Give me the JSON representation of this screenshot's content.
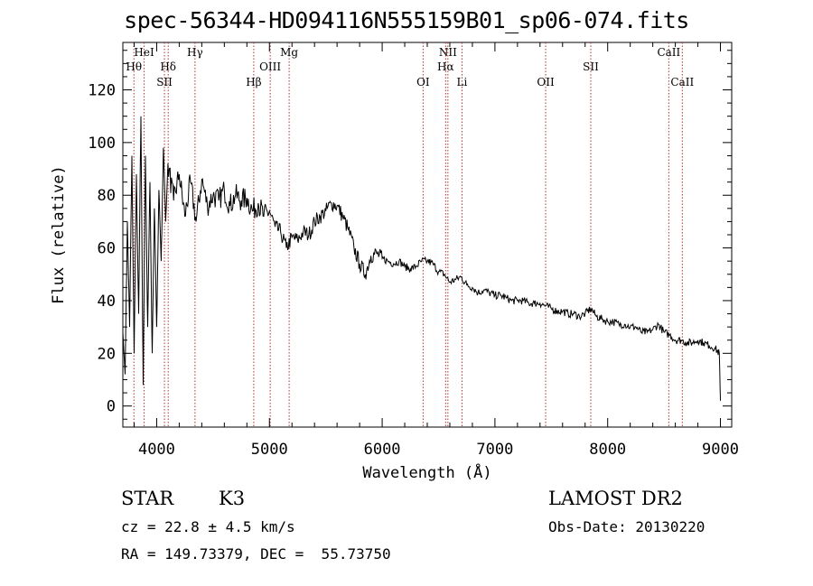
{
  "chart_data": {
    "type": "line",
    "title": "spec-56344-HD094116N555159B01_sp06-074.fits",
    "xlabel": "Wavelength (Å)",
    "ylabel": "Flux (relative)",
    "xlim": [
      3700,
      9100
    ],
    "ylim": [
      -8,
      138
    ],
    "x_ticks": [
      4000,
      5000,
      6000,
      7000,
      8000,
      9000
    ],
    "y_ticks": [
      0,
      20,
      40,
      60,
      80,
      100,
      120
    ],
    "grid": false,
    "series": [
      {
        "points": [
          [
            3700,
            28
          ],
          [
            3720,
            12
          ],
          [
            3740,
            70
          ],
          [
            3760,
            30
          ],
          [
            3780,
            95
          ],
          [
            3800,
            20
          ],
          [
            3820,
            88
          ],
          [
            3840,
            35
          ],
          [
            3860,
            110
          ],
          [
            3880,
            8
          ],
          [
            3900,
            95
          ],
          [
            3920,
            30
          ],
          [
            3940,
            85
          ],
          [
            3960,
            20
          ],
          [
            3980,
            75
          ],
          [
            4000,
            30
          ],
          [
            4020,
            82
          ],
          [
            4040,
            55
          ],
          [
            4060,
            98
          ],
          [
            4080,
            70
          ],
          [
            4100,
            92
          ],
          [
            4150,
            78
          ],
          [
            4200,
            88
          ],
          [
            4250,
            72
          ],
          [
            4300,
            85
          ],
          [
            4350,
            70
          ],
          [
            4400,
            86
          ],
          [
            4450,
            76
          ],
          [
            4500,
            80
          ],
          [
            4550,
            78
          ],
          [
            4600,
            82
          ],
          [
            4650,
            76
          ],
          [
            4700,
            80
          ],
          [
            4750,
            78
          ],
          [
            4800,
            79
          ],
          [
            4850,
            74
          ],
          [
            4900,
            77
          ],
          [
            4950,
            72
          ],
          [
            5000,
            74
          ],
          [
            5050,
            68
          ],
          [
            5100,
            66
          ],
          [
            5150,
            60
          ],
          [
            5200,
            64
          ],
          [
            5250,
            63
          ],
          [
            5300,
            66
          ],
          [
            5350,
            65
          ],
          [
            5400,
            70
          ],
          [
            5450,
            72
          ],
          [
            5500,
            74
          ],
          [
            5550,
            77
          ],
          [
            5600,
            76
          ],
          [
            5650,
            72
          ],
          [
            5700,
            67
          ],
          [
            5750,
            60
          ],
          [
            5800,
            54
          ],
          [
            5850,
            50
          ],
          [
            5900,
            57
          ],
          [
            5950,
            58
          ],
          [
            6000,
            56
          ],
          [
            6050,
            55
          ],
          [
            6100,
            54
          ],
          [
            6150,
            55
          ],
          [
            6200,
            53
          ],
          [
            6250,
            52
          ],
          [
            6300,
            53
          ],
          [
            6350,
            55
          ],
          [
            6400,
            55
          ],
          [
            6450,
            54
          ],
          [
            6500,
            51
          ],
          [
            6550,
            50
          ],
          [
            6600,
            47
          ],
          [
            6650,
            48
          ],
          [
            6700,
            49
          ],
          [
            6750,
            46
          ],
          [
            6800,
            45
          ],
          [
            6850,
            43
          ],
          [
            6900,
            44
          ],
          [
            6950,
            43
          ],
          [
            7000,
            42
          ],
          [
            7050,
            42
          ],
          [
            7100,
            41
          ],
          [
            7150,
            40
          ],
          [
            7200,
            40
          ],
          [
            7250,
            40
          ],
          [
            7300,
            39
          ],
          [
            7350,
            39
          ],
          [
            7400,
            39
          ],
          [
            7450,
            38
          ],
          [
            7500,
            37
          ],
          [
            7550,
            36
          ],
          [
            7600,
            36
          ],
          [
            7650,
            35
          ],
          [
            7700,
            35
          ],
          [
            7750,
            34
          ],
          [
            7800,
            35
          ],
          [
            7850,
            37
          ],
          [
            7900,
            34
          ],
          [
            7950,
            33
          ],
          [
            8000,
            32
          ],
          [
            8050,
            32
          ],
          [
            8100,
            31
          ],
          [
            8150,
            31
          ],
          [
            8200,
            30
          ],
          [
            8250,
            30
          ],
          [
            8300,
            28
          ],
          [
            8350,
            28
          ],
          [
            8400,
            29
          ],
          [
            8450,
            31
          ],
          [
            8500,
            28
          ],
          [
            8550,
            27
          ],
          [
            8600,
            25
          ],
          [
            8650,
            25
          ],
          [
            8700,
            24
          ],
          [
            8750,
            24
          ],
          [
            8800,
            25
          ],
          [
            8850,
            24
          ],
          [
            8900,
            23
          ],
          [
            8950,
            22
          ],
          [
            8990,
            20
          ],
          [
            9000,
            2
          ]
        ]
      }
    ],
    "line_markers": [
      {
        "label": "Hθ",
        "x": 3798,
        "row": 2
      },
      {
        "label": "HeI",
        "x": 3889,
        "row": 1
      },
      {
        "label": "SII",
        "x": 4069,
        "row": 3
      },
      {
        "label": "Hδ",
        "x": 4102,
        "row": 2
      },
      {
        "label": "Hγ",
        "x": 4340,
        "row": 1
      },
      {
        "label": "Hβ",
        "x": 4861,
        "row": 3
      },
      {
        "label": "OIII",
        "x": 5007,
        "row": 2
      },
      {
        "label": "Mg",
        "x": 5175,
        "row": 1
      },
      {
        "label": "OI",
        "x": 6363,
        "row": 3
      },
      {
        "label": "NII",
        "x": 6583,
        "row": 1
      },
      {
        "label": "Hα",
        "x": 6563,
        "row": 2
      },
      {
        "label": "Li",
        "x": 6708,
        "row": 3
      },
      {
        "label": "OII",
        "x": 7450,
        "row": 3
      },
      {
        "label": "SII",
        "x": 7850,
        "row": 2
      },
      {
        "label": "CaII",
        "x": 8542,
        "row": 1
      },
      {
        "label": "CaII",
        "x": 8662,
        "row": 3
      }
    ]
  },
  "info": {
    "object_class": "STAR",
    "subclass": "K3",
    "survey": "LAMOST DR2",
    "redshift": "cz = 22.8 ± 4.5 km/s",
    "obs_date": "Obs-Date: 20130220",
    "coordinates": "RA = 149.73379, DEC =  55.73750"
  }
}
